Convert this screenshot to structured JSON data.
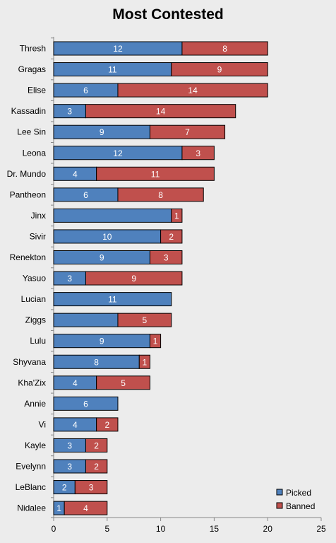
{
  "chart_data": {
    "type": "bar",
    "orientation": "horizontal",
    "stacked": true,
    "title": "Most Contested",
    "categories": [
      "Thresh",
      "Gragas",
      "Elise",
      "Kassadin",
      "Lee Sin",
      "Leona",
      "Dr. Mundo",
      "Pantheon",
      "Jinx",
      "Sivir",
      "Renekton",
      "Yasuo",
      "Lucian",
      "Ziggs",
      "Lulu",
      "Shyvana",
      "Kha'Zix",
      "Annie",
      "Vi",
      "Kayle",
      "Evelynn",
      "LeBlanc",
      "Nidalee"
    ],
    "series": [
      {
        "name": "Picked",
        "color": "#4f81bd",
        "values": [
          12,
          11,
          6,
          3,
          9,
          12,
          4,
          6,
          11,
          10,
          9,
          3,
          11,
          6,
          9,
          8,
          4,
          6,
          4,
          3,
          3,
          2,
          1
        ]
      },
      {
        "name": "Banned",
        "color": "#c0504d",
        "values": [
          8,
          9,
          14,
          14,
          7,
          3,
          11,
          8,
          1,
          2,
          3,
          9,
          0,
          5,
          1,
          1,
          5,
          0,
          2,
          2,
          2,
          3,
          4
        ]
      }
    ],
    "data_labels": {
      "Picked": [
        "12",
        "11",
        "6",
        "3",
        "9",
        "12",
        "4",
        "6",
        "",
        "10",
        "9",
        "3",
        "11",
        "",
        "9",
        "8",
        "4",
        "6",
        "4",
        "3",
        "3",
        "2",
        "1"
      ],
      "Banned": [
        "8",
        "9",
        "14",
        "14",
        "7",
        "3",
        "11",
        "8",
        "1",
        "2",
        "3",
        "9",
        "",
        "5",
        "1",
        "1",
        "5",
        "",
        "2",
        "2",
        "2",
        "3",
        "4"
      ]
    },
    "xlim": [
      0,
      25
    ],
    "xticks": [
      "0",
      "5",
      "10",
      "15",
      "20",
      "25"
    ],
    "xlabel": "",
    "ylabel": "",
    "grid": false,
    "legend_position": "bottom-right"
  }
}
